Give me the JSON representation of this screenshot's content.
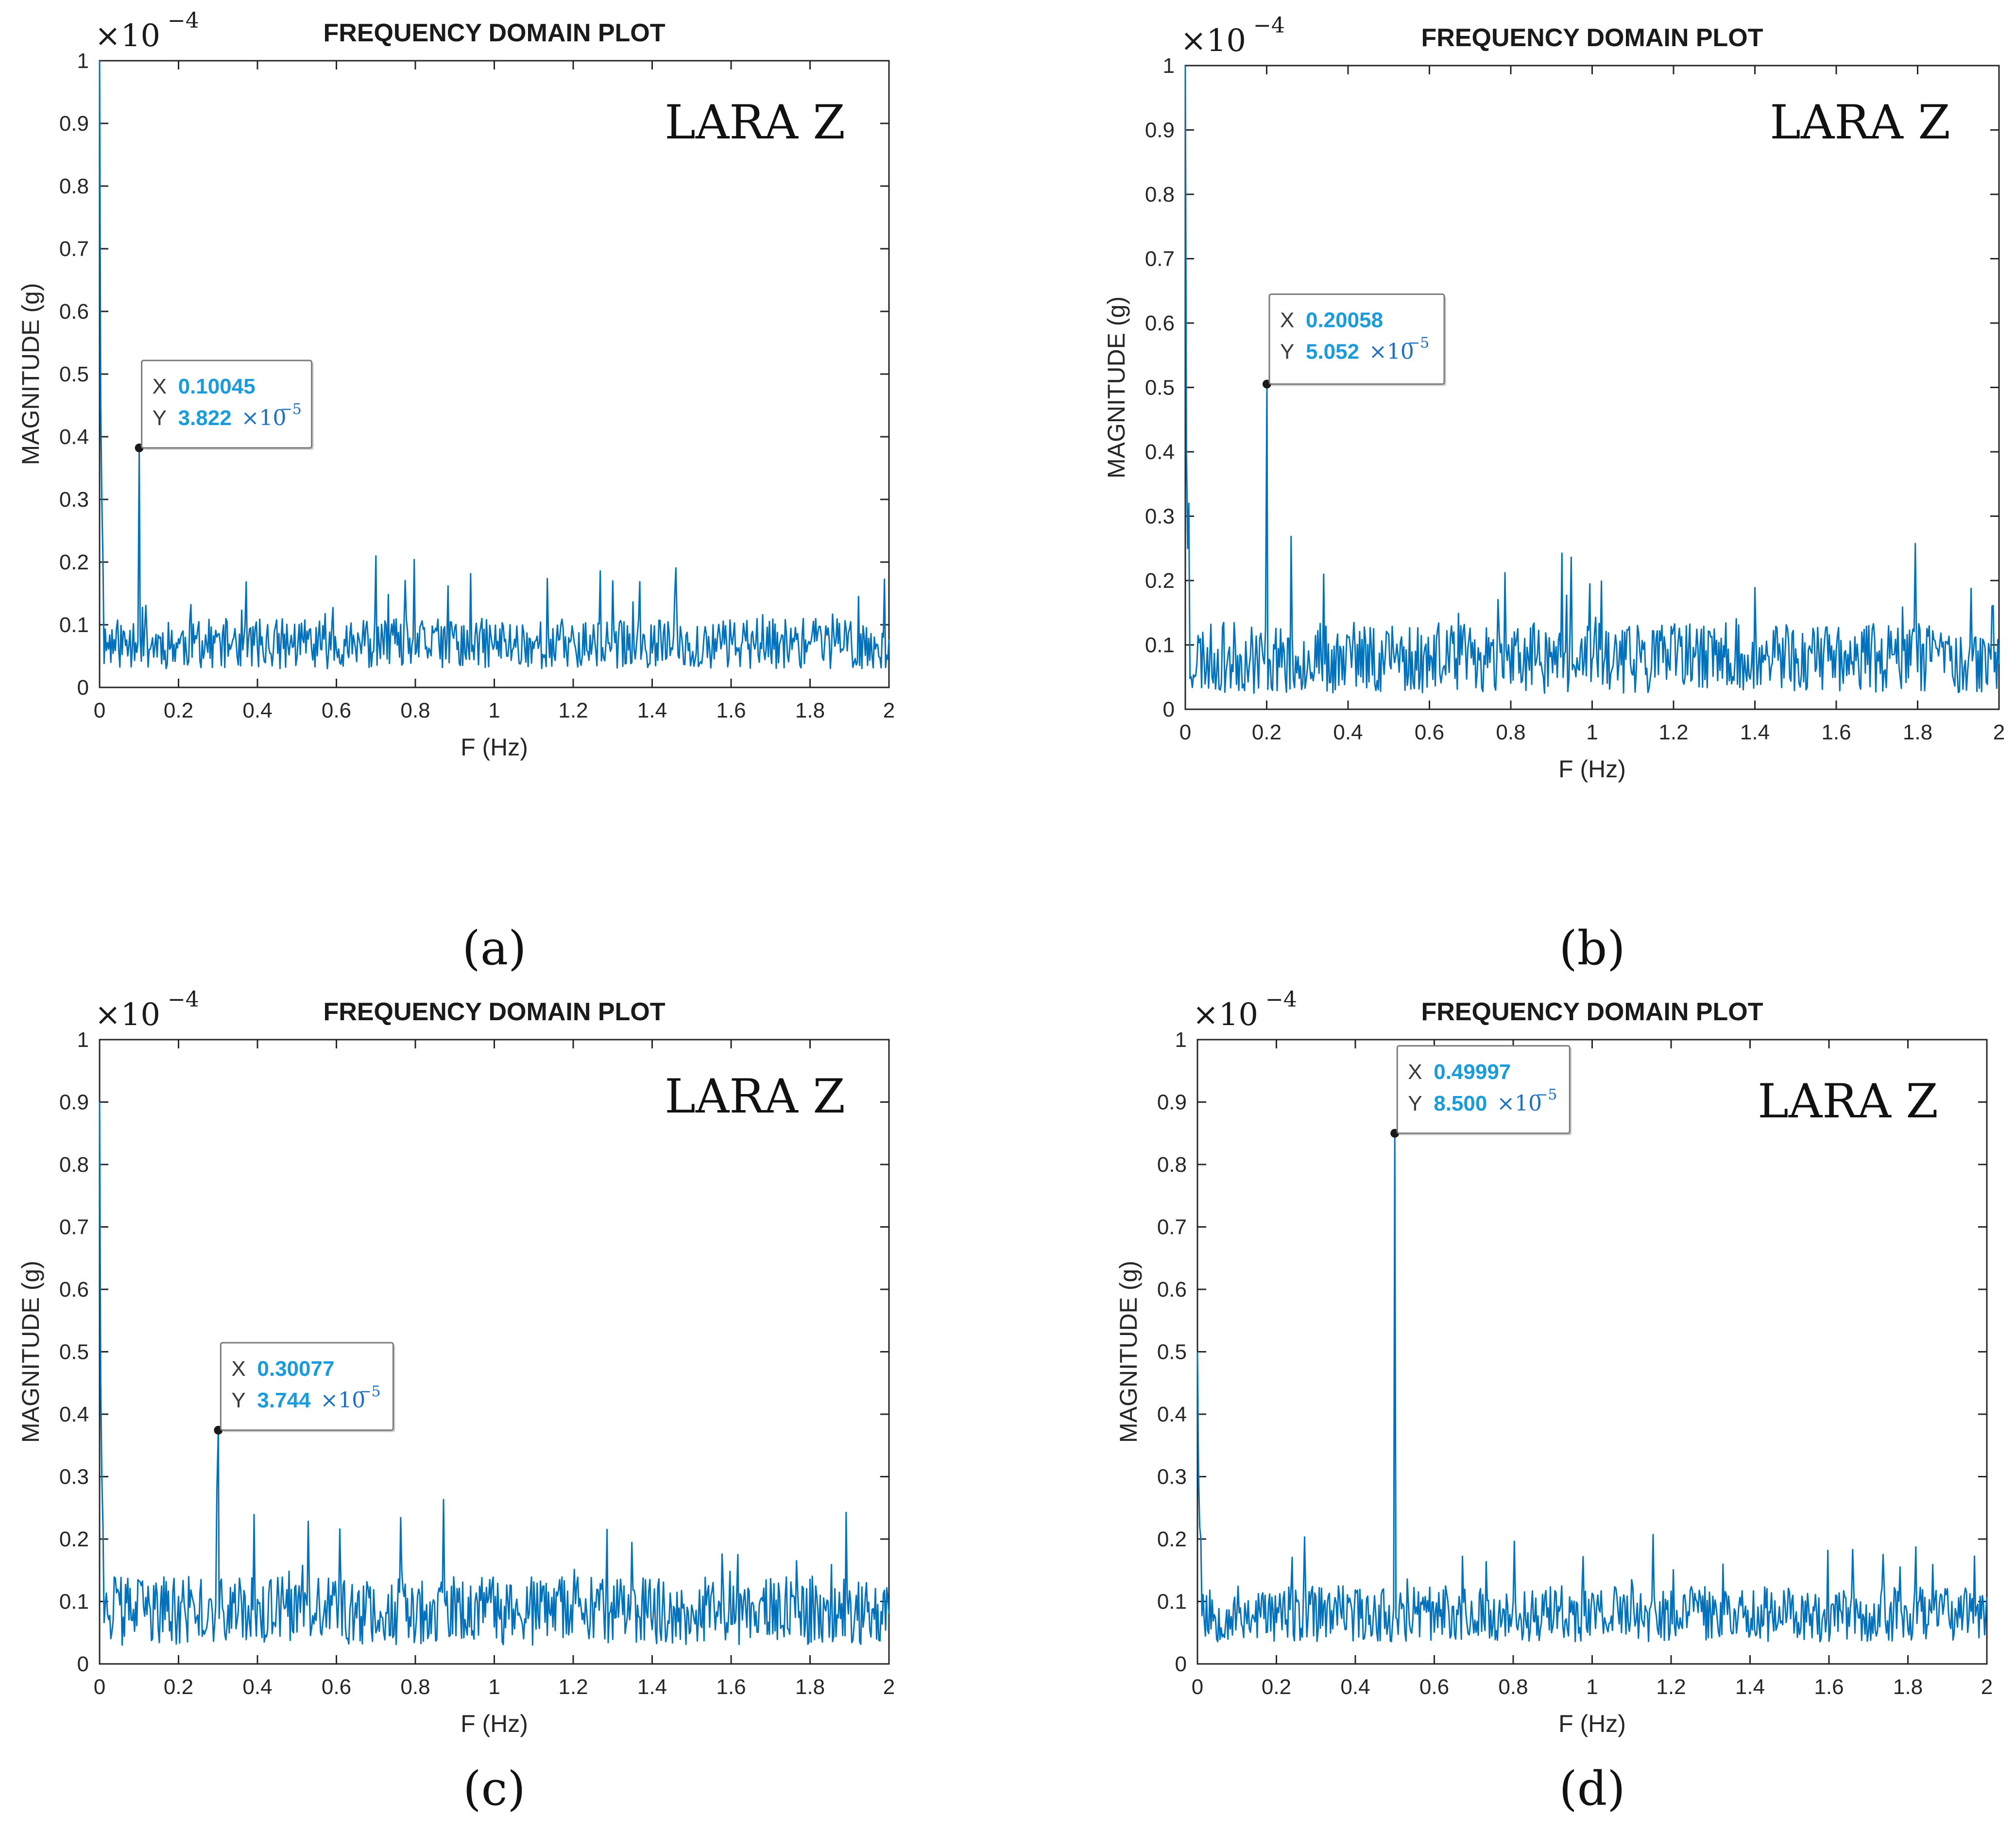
{
  "chart_data": [
    {
      "id": "a",
      "type": "line",
      "title": "FREQUENCY DOMAIN PLOT",
      "annotation": "LARA Z",
      "panel_label": "(a)",
      "xlabel": "F (Hz)",
      "ylabel": "MAGNITUDE (g)",
      "y_scale_label": "×10",
      "y_scale_exponent": "−4",
      "xlim": [
        0,
        2
      ],
      "ylim": [
        0,
        1
      ],
      "xticks": [
        "0",
        "0.2",
        "0.4",
        "0.6",
        "0.8",
        "1",
        "1.2",
        "1.4",
        "1.6",
        "1.8",
        "2"
      ],
      "yticks": [
        "0",
        "0.1",
        "0.2",
        "0.3",
        "0.4",
        "0.5",
        "0.6",
        "0.7",
        "0.8",
        "0.9",
        "1"
      ],
      "color": "#0072bd",
      "noise": {
        "base": 0.07,
        "amp": 0.04,
        "seed": 11
      },
      "peak": {
        "x": 0.10045,
        "y": 0.3822
      },
      "dc": [
        1.0,
        0.45,
        0.3,
        0.2
      ],
      "datatip": {
        "x_key": "X",
        "x_value": "0.10045",
        "y_key": "Y",
        "y_value": "3.822",
        "y_exp_base": "×10",
        "y_exp": "−5"
      }
    },
    {
      "id": "b",
      "type": "line",
      "title": "FREQUENCY DOMAIN PLOT",
      "annotation": "LARA Z",
      "panel_label": "(b)",
      "xlabel": "F (Hz)",
      "ylabel": "MAGNITUDE (g)",
      "y_scale_label": "×10",
      "y_scale_exponent": "−4",
      "xlim": [
        0,
        2
      ],
      "ylim": [
        0,
        1
      ],
      "xticks": [
        "0",
        "0.2",
        "0.4",
        "0.6",
        "0.8",
        "1",
        "1.2",
        "1.4",
        "1.6",
        "1.8",
        "2"
      ],
      "yticks": [
        "0",
        "0.1",
        "0.2",
        "0.3",
        "0.4",
        "0.5",
        "0.6",
        "0.7",
        "0.8",
        "0.9",
        "1"
      ],
      "color": "#0072bd",
      "noise": {
        "base": 0.08,
        "amp": 0.055,
        "seed": 23
      },
      "peak": {
        "x": 0.20058,
        "y": 0.5052
      },
      "dc": [
        1.0,
        0.4,
        0.25,
        0.32
      ],
      "datatip": {
        "x_key": "X",
        "x_value": "0.20058",
        "y_key": "Y",
        "y_value": "5.052",
        "y_exp_base": "×10",
        "y_exp": "−5"
      }
    },
    {
      "id": "c",
      "type": "line",
      "title": "FREQUENCY DOMAIN PLOT",
      "annotation": "LARA Z",
      "panel_label": "(c)",
      "xlabel": "F (Hz)",
      "ylabel": "MAGNITUDE (g)",
      "y_scale_label": "×10",
      "y_scale_exponent": "−4",
      "xlim": [
        0,
        2
      ],
      "ylim": [
        0,
        1
      ],
      "xticks": [
        "0",
        "0.2",
        "0.4",
        "0.6",
        "0.8",
        "1",
        "1.2",
        "1.4",
        "1.6",
        "1.8",
        "2"
      ],
      "yticks": [
        "0",
        "0.1",
        "0.2",
        "0.3",
        "0.4",
        "0.5",
        "0.6",
        "0.7",
        "0.8",
        "0.9",
        "1"
      ],
      "color": "#0072bd",
      "noise": {
        "base": 0.085,
        "amp": 0.055,
        "seed": 37
      },
      "peak": {
        "x": 0.30077,
        "y": 0.3744
      },
      "dc": [
        0.9,
        0.45,
        0.3,
        0.22
      ],
      "datatip": {
        "x_key": "X",
        "x_value": "0.30077",
        "y_key": "Y",
        "y_value": "3.744",
        "y_exp_base": "×10",
        "y_exp": "−5"
      }
    },
    {
      "id": "d",
      "type": "line",
      "title": "FREQUENCY DOMAIN PLOT",
      "annotation": "LARA Z",
      "panel_label": "(d)",
      "xlabel": "F (Hz)",
      "ylabel": "MAGNITUDE (g)",
      "y_scale_label": "×10",
      "y_scale_exponent": "−4",
      "xlim": [
        0,
        2
      ],
      "ylim": [
        0,
        1
      ],
      "xticks": [
        "0",
        "0.2",
        "0.4",
        "0.6",
        "0.8",
        "1",
        "1.2",
        "1.4",
        "1.6",
        "1.8",
        "2"
      ],
      "yticks": [
        "0",
        "0.1",
        "0.2",
        "0.3",
        "0.4",
        "0.5",
        "0.6",
        "0.7",
        "0.8",
        "0.9",
        "1"
      ],
      "color": "#0072bd",
      "noise": {
        "base": 0.08,
        "amp": 0.045,
        "seed": 53
      },
      "peak": {
        "x": 0.49997,
        "y": 0.85
      },
      "dc": [
        0.5,
        0.3,
        0.22,
        0.2
      ],
      "datatip": {
        "x_key": "X",
        "x_value": "0.49997",
        "y_key": "Y",
        "y_value": "8.500",
        "y_exp_base": "×10",
        "y_exp": "−5"
      }
    }
  ]
}
